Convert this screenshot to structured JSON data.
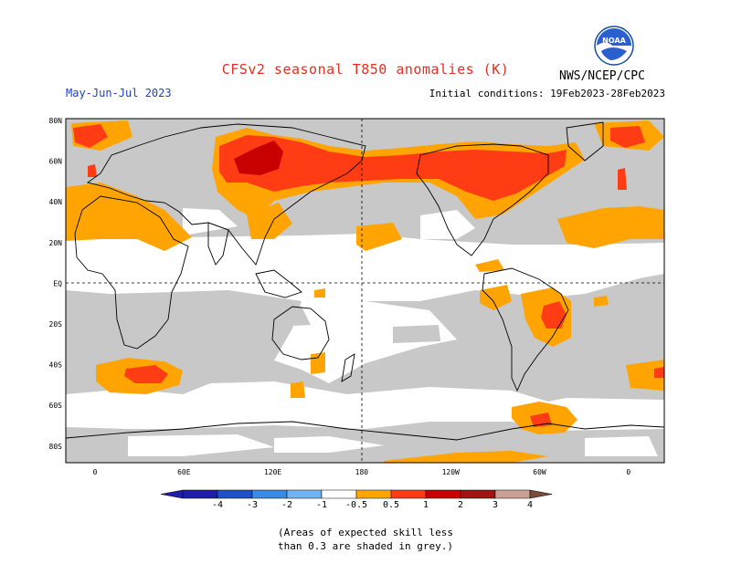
{
  "header": {
    "title": "CFSv2 seasonal T850 anomalies (K)",
    "season": "May-Jun-Jul 2023",
    "initial_conditions": "Initial conditions: 19Feb2023-28Feb2023",
    "agency": "NWS/NCEP/CPC",
    "logo_text": "NOAA"
  },
  "map": {
    "lat_labels": [
      "80N",
      "60N",
      "40N",
      "20N",
      "EQ",
      "20S",
      "40S",
      "60S",
      "80S"
    ],
    "lon_labels": [
      "0",
      "60E",
      "120E",
      "180",
      "120W",
      "60W",
      "0"
    ],
    "grey_color": "#c8c8c8"
  },
  "colorbar": {
    "ticks": [
      "-4",
      "-3",
      "-2",
      "-1",
      "-0.5",
      "0.5",
      "1",
      "2",
      "3",
      "4"
    ],
    "colors": [
      "#1e1ea8",
      "#2050c8",
      "#3a8ae8",
      "#6eb4f4",
      "#ffffff",
      "#ffa400",
      "#ff3c14",
      "#c80000",
      "#a01414",
      "#c8a096"
    ]
  },
  "footnote": {
    "line1": "(Areas of expected skill less",
    "line2": "than 0.3 are shaded in grey.)"
  }
}
